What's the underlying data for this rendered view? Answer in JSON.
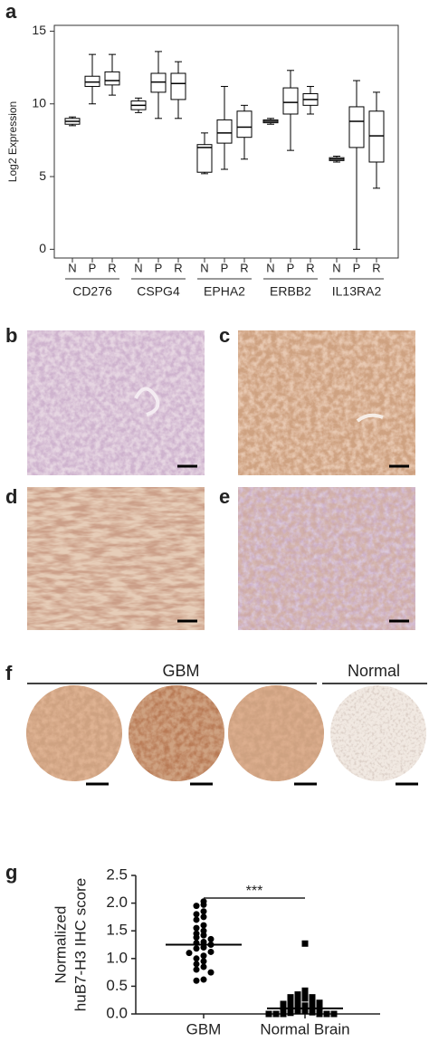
{
  "figure": {
    "panel_labels": [
      "a",
      "b",
      "c",
      "d",
      "e",
      "f",
      "g"
    ],
    "panel_f_headers": [
      "GBM",
      "Normal"
    ]
  },
  "chart_data": [
    {
      "type": "box",
      "y_label": "Log2 Expression",
      "categories": [
        "N",
        "P",
        "R",
        "N",
        "P",
        "R",
        "N",
        "P",
        "R",
        "N",
        "P",
        "R",
        "N",
        "P",
        "R"
      ],
      "groups": [
        "CD276",
        "CSPG4",
        "EPHA2",
        "ERBB2",
        "IL13RA2"
      ],
      "boxes": [
        {
          "min": 8.5,
          "q1": 8.6,
          "median": 8.8,
          "q3": 9.0,
          "max": 9.1
        },
        {
          "min": 10.0,
          "q1": 11.2,
          "median": 11.5,
          "q3": 11.9,
          "max": 13.4
        },
        {
          "min": 10.6,
          "q1": 11.3,
          "median": 11.6,
          "q3": 12.2,
          "max": 13.4
        },
        {
          "min": 9.4,
          "q1": 9.6,
          "median": 9.9,
          "q3": 10.2,
          "max": 10.4
        },
        {
          "min": 9.0,
          "q1": 10.8,
          "median": 11.5,
          "q3": 12.1,
          "max": 13.6
        },
        {
          "min": 9.0,
          "q1": 10.3,
          "median": 11.4,
          "q3": 12.1,
          "max": 12.9
        },
        {
          "min": 5.2,
          "q1": 5.3,
          "median": 7.0,
          "q3": 7.2,
          "max": 8.0
        },
        {
          "min": 5.5,
          "q1": 7.3,
          "median": 8.0,
          "q3": 8.9,
          "max": 11.2
        },
        {
          "min": 6.2,
          "q1": 7.7,
          "median": 8.4,
          "q3": 9.5,
          "max": 9.9
        },
        {
          "min": 8.6,
          "q1": 8.7,
          "median": 8.8,
          "q3": 8.9,
          "max": 9.0
        },
        {
          "min": 6.8,
          "q1": 9.3,
          "median": 10.1,
          "q3": 11.1,
          "max": 12.3
        },
        {
          "min": 9.3,
          "q1": 9.9,
          "median": 10.3,
          "q3": 10.7,
          "max": 11.2
        },
        {
          "min": 6.0,
          "q1": 6.1,
          "median": 6.2,
          "q3": 6.3,
          "max": 6.4
        },
        {
          "min": 0.0,
          "q1": 7.0,
          "median": 8.8,
          "q3": 9.8,
          "max": 11.6
        },
        {
          "min": 4.2,
          "q1": 6.0,
          "median": 7.8,
          "q3": 9.5,
          "max": 10.8
        }
      ],
      "ylim": [
        -0.6,
        15.4
      ],
      "yticks": [
        0,
        5,
        10,
        15
      ],
      "color": "#000000"
    },
    {
      "type": "dotplot",
      "y_label": [
        "Normalized",
        "huB7-H3 IHC score"
      ],
      "categories": [
        "GBM",
        "Normal Brain"
      ],
      "markers": [
        "circle",
        "square"
      ],
      "points": [
        [
          2.03,
          1.97,
          1.95,
          1.85,
          1.8,
          1.75,
          1.7,
          1.6,
          1.55,
          1.5,
          1.45,
          1.42,
          1.38,
          1.35,
          1.3,
          1.28,
          1.25,
          1.2,
          1.18,
          1.12,
          1.1,
          1.05,
          1.0,
          0.95,
          0.9,
          0.85,
          0.8,
          0.75,
          0.62,
          0.6
        ],
        [
          1.27,
          0.42,
          0.38,
          0.35,
          0.3,
          0.3,
          0.28,
          0.25,
          0.22,
          0.2,
          0.2,
          0.18,
          0.15,
          0.15,
          0.12,
          0.1,
          0.1,
          0.08,
          0.05,
          0.05,
          0.03,
          0.02,
          0,
          0,
          0,
          0,
          0,
          0
        ]
      ],
      "means": [
        1.25,
        0.1
      ],
      "annotation": "***",
      "ylim": [
        0,
        2.5
      ],
      "yticks": [
        {
          "value": 0,
          "label": "0.0"
        },
        0.5,
        {
          "value": 1,
          "label": "1.0"
        },
        1.5,
        {
          "value": 2,
          "label": "2.0"
        },
        2.5
      ],
      "color": "#000000"
    }
  ]
}
